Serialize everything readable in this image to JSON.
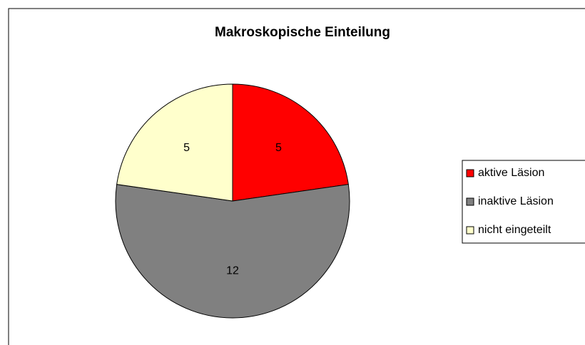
{
  "chart_data": {
    "type": "pie",
    "title": "Makroskopische Einteilung",
    "categories": [
      "aktive Läsion",
      "inaktive Läsion",
      "nicht eingeteilt"
    ],
    "values": [
      5,
      12,
      5
    ],
    "colors": [
      "#ff0000",
      "#808080",
      "#ffffcc"
    ],
    "legend": "right"
  }
}
